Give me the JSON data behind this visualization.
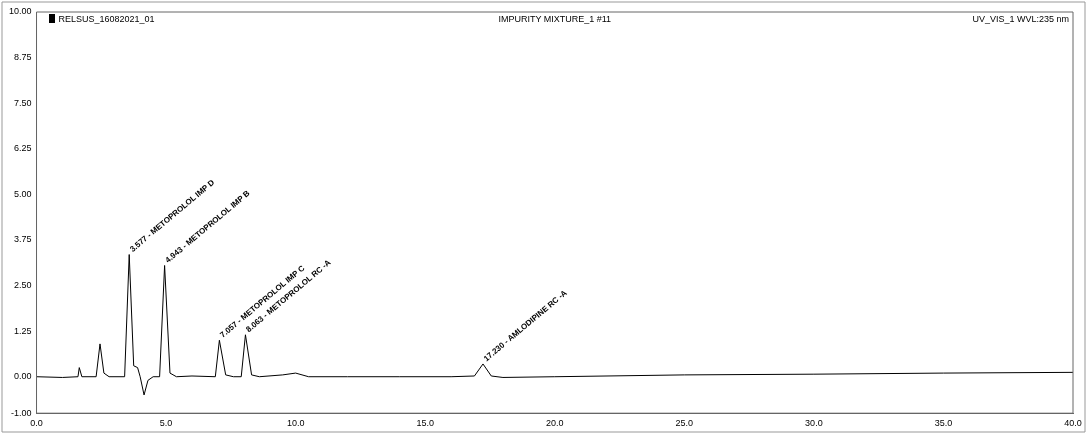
{
  "chart_data": {
    "type": "line",
    "title": "IMPURITY MIXTURE_1 #11",
    "annotations": [
      "RELSUS_16082021_01",
      "UV_VIS_1 WVL:235 nm",
      {
        "text": "3.577 - METOPROLOL IMP D",
        "x": 3.577,
        "y": 3.35
      },
      {
        "text": "4.943 - METOPROLOL IMP B",
        "x": 4.943,
        "y": 3.05
      },
      {
        "text": "7.057 - METOPROLOL IMP C",
        "x": 7.057,
        "y": 1.0
      },
      {
        "text": "8.063 - METOPROLOL RC -A",
        "x": 8.063,
        "y": 1.15
      },
      {
        "text": "17.230 - AMLODIPINE RC -A",
        "x": 17.23,
        "y": 0.35
      }
    ],
    "series": [
      {
        "color": "#000000",
        "x": [
          0,
          1.0,
          1.6,
          1.65,
          1.75,
          2.3,
          2.45,
          2.6,
          2.8,
          3.4,
          3.577,
          3.75,
          3.9,
          4.0,
          4.15,
          4.3,
          4.5,
          4.75,
          4.943,
          5.15,
          5.4,
          6.0,
          6.9,
          7.057,
          7.3,
          7.6,
          7.9,
          8.063,
          8.3,
          8.6,
          9.5,
          10.0,
          10.5,
          12,
          14,
          16,
          16.9,
          17.23,
          17.55,
          18,
          20,
          25,
          30,
          35,
          40
        ],
        "values": [
          0,
          -0.02,
          0,
          0.25,
          0,
          0,
          0.9,
          0.1,
          0,
          0,
          3.35,
          0.3,
          0.25,
          0,
          -0.5,
          -0.1,
          0,
          0,
          3.05,
          0.1,
          0,
          0.02,
          0,
          1.0,
          0.05,
          0,
          0,
          1.15,
          0.05,
          0,
          0.05,
          0.1,
          0,
          0,
          0,
          0,
          0.02,
          0.35,
          0.02,
          -0.02,
          0,
          0.05,
          0.07,
          0.1,
          0.12
        ]
      }
    ],
    "xlim": [
      0,
      40
    ],
    "xticks": [
      {
        "value": 0,
        "label": "0.0"
      },
      {
        "value": 5,
        "label": "5.0"
      },
      {
        "value": 10,
        "label": "10.0"
      },
      {
        "value": 15,
        "label": "15.0"
      },
      {
        "value": 20,
        "label": "20.0"
      },
      {
        "value": 25,
        "label": "25.0"
      },
      {
        "value": 30,
        "label": "30.0"
      },
      {
        "value": 35,
        "label": "35.0"
      },
      {
        "value": 40,
        "label": "40.0"
      }
    ],
    "ylim": [
      -1,
      10
    ],
    "yticks": [
      {
        "value": -1,
        "label": "-1.00"
      },
      {
        "value": 0,
        "label": "0.00"
      },
      {
        "value": 1.25,
        "label": "1.25"
      },
      {
        "value": 2.5,
        "label": "2.50"
      },
      {
        "value": 3.75,
        "label": "3.75"
      },
      {
        "value": 5,
        "label": "5.00"
      },
      {
        "value": 6.25,
        "label": "6.25"
      },
      {
        "value": 7.5,
        "label": "7.50"
      },
      {
        "value": 8.75,
        "label": "8.75"
      },
      {
        "value": 10,
        "label": "10.00"
      }
    ],
    "grid": false,
    "legend": false,
    "marker": "none",
    "line_style": "solid"
  }
}
